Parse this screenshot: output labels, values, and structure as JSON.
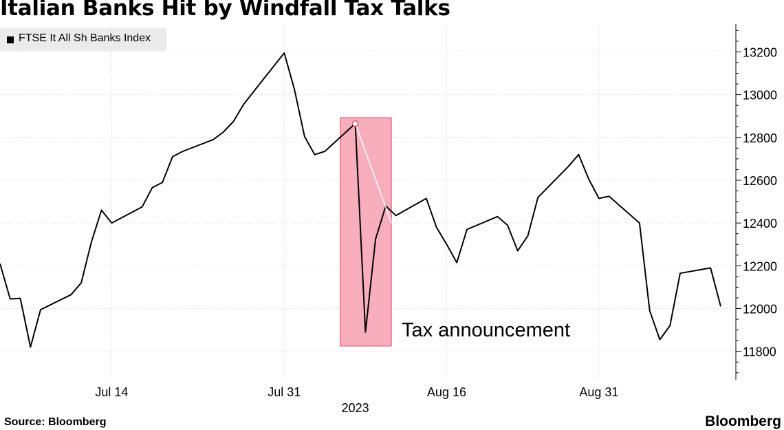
{
  "title": "Italian Banks Hit by Windfall Tax Talks",
  "source": "Source: Bloomberg",
  "brand": "Bloomberg",
  "legend": {
    "label": "FTSE It All Sh Banks Index",
    "color": "#000000"
  },
  "annotation": {
    "text": "Tax announcement",
    "highlight_color": "#f7a0b0"
  },
  "colors": {
    "line": "#000000",
    "grid": "#e3e3e3",
    "highlight": "#f7a0b0",
    "highlight_border": "#e0506e"
  },
  "chart_data": {
    "type": "line",
    "title": "Italian Banks Hit by Windfall Tax Talks",
    "xlabel": "2023",
    "ylabel": "",
    "x_tick_labels": [
      "Jul 14",
      "Jul 31",
      "Aug 16",
      "Aug 31"
    ],
    "x_year_label": "2023",
    "y_ticks": [
      11800,
      12000,
      12200,
      12400,
      12600,
      12800,
      13000,
      13200
    ],
    "ylim": [
      11680,
      13330
    ],
    "grid": true,
    "legend_position": "top-left",
    "series": [
      {
        "name": "FTSE It All Sh Banks Index",
        "x": [
          "2023-07-03",
          "2023-07-04",
          "2023-07-05",
          "2023-07-06",
          "2023-07-07",
          "2023-07-10",
          "2023-07-11",
          "2023-07-12",
          "2023-07-13",
          "2023-07-14",
          "2023-07-17",
          "2023-07-18",
          "2023-07-19",
          "2023-07-20",
          "2023-07-21",
          "2023-07-24",
          "2023-07-25",
          "2023-07-26",
          "2023-07-27",
          "2023-07-28",
          "2023-07-31",
          "2023-08-01",
          "2023-08-02",
          "2023-08-03",
          "2023-08-04",
          "2023-08-07",
          "2023-08-08",
          "2023-08-09",
          "2023-08-10",
          "2023-08-11",
          "2023-08-14",
          "2023-08-15",
          "2023-08-16",
          "2023-08-17",
          "2023-08-18",
          "2023-08-21",
          "2023-08-22",
          "2023-08-23",
          "2023-08-24",
          "2023-08-25",
          "2023-08-28",
          "2023-08-29",
          "2023-08-30",
          "2023-08-31",
          "2023-09-01",
          "2023-09-04",
          "2023-09-05",
          "2023-09-06",
          "2023-09-07",
          "2023-09-08",
          "2023-09-11",
          "2023-09-12"
        ],
        "values": [
          12210,
          12045,
          12048,
          11820,
          11995,
          12065,
          12120,
          12310,
          12460,
          12400,
          12475,
          12565,
          12590,
          12710,
          12735,
          12790,
          12825,
          12875,
          12955,
          13015,
          13195,
          13025,
          12805,
          12720,
          12735,
          12865,
          11890,
          12325,
          12480,
          12435,
          12515,
          12380,
          12300,
          12215,
          12370,
          12430,
          12390,
          12270,
          12340,
          12520,
          12665,
          12720,
          12605,
          12515,
          12525,
          12400,
          11990,
          11855,
          11920,
          12165,
          12190,
          12010
        ]
      }
    ],
    "highlight": {
      "x_start": "2023-08-07",
      "x_end": "2023-08-09",
      "label": "Tax announcement"
    }
  }
}
